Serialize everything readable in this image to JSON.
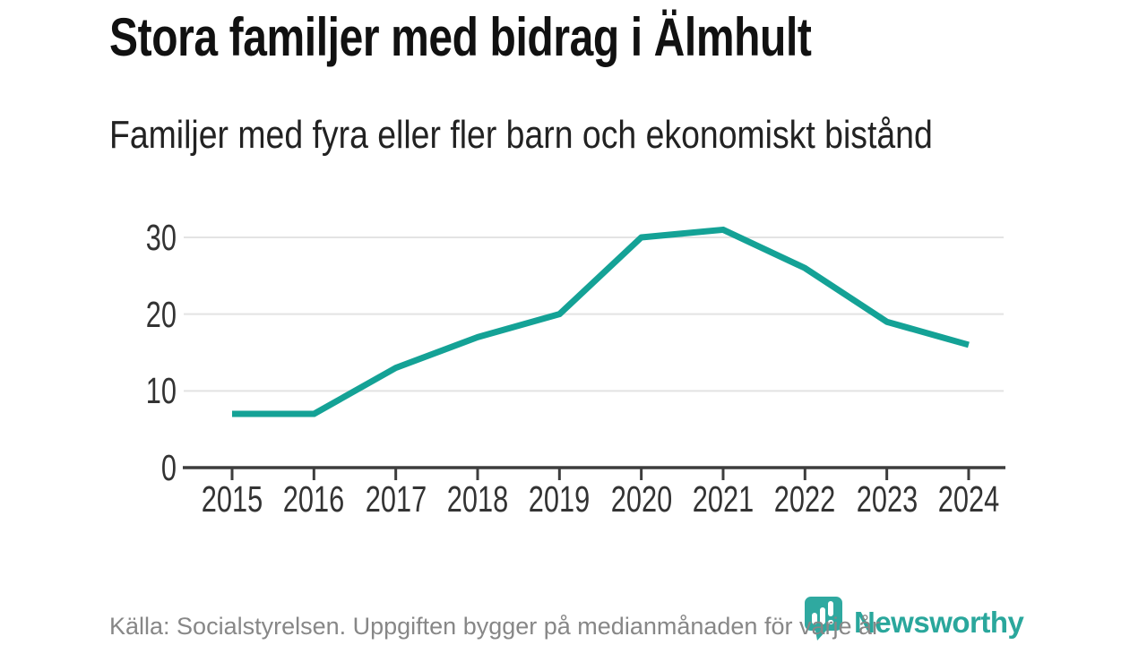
{
  "header": {
    "title": "Stora familjer med bidrag i Älmhult",
    "subtitle": "Familjer med fyra eller fler barn och ekonomiskt bistånd"
  },
  "chart_data": {
    "type": "line",
    "title": "Stora familjer med bidrag i Älmhult",
    "subtitle": "Familjer med fyra eller fler barn och ekonomiskt bistånd",
    "x": [
      "2015",
      "2016",
      "2017",
      "2018",
      "2019",
      "2020",
      "2021",
      "2022",
      "2023",
      "2024"
    ],
    "values": [
      7,
      7,
      13,
      17,
      20,
      30,
      31,
      26,
      19,
      16
    ],
    "xlabel": "",
    "ylabel": "",
    "ylim": [
      0,
      33
    ],
    "yticks": [
      0,
      10,
      20,
      30
    ],
    "grid": "horizontal",
    "legend_position": "none",
    "line_color": "#14a296"
  },
  "footer": {
    "source": "Källa: Socialstyrelsen. Uppgiften bygger på medianmånaden för varje år",
    "brand_name": "Newsworthy"
  },
  "colors": {
    "line": "#14a296",
    "brand": "#2aa79c",
    "brand_icon": "#2fa9a0",
    "title_text": "#111111",
    "axis_text": "#333333",
    "gridline": "#e3e3e3",
    "axis_line": "#3d3d3d",
    "source_text": "#878787",
    "background": "#ffffff"
  }
}
